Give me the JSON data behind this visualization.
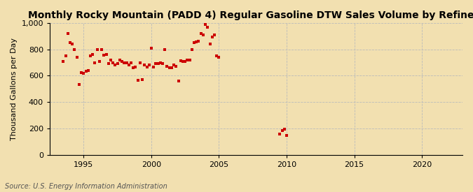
{
  "title": "Monthly Rocky Mountain (PADD 4) Regular Gasoline DTW Sales Volume by Refiners",
  "ylabel": "Thousand Gallons per Day",
  "source": "Source: U.S. Energy Information Administration",
  "background_color": "#f2e0b0",
  "plot_background_color": "#f2e0b0",
  "marker_color": "#cc0000",
  "marker": "s",
  "marker_size": 2.8,
  "xlim": [
    1992.5,
    2023.0
  ],
  "ylim": [
    0,
    1000
  ],
  "yticks": [
    0,
    200,
    400,
    600,
    800,
    1000
  ],
  "xticks": [
    1995,
    2000,
    2005,
    2010,
    2015,
    2020
  ],
  "grid_color": "#bbbbbb",
  "title_fontsize": 10,
  "axis_fontsize": 8,
  "source_fontsize": 7,
  "data_x": [
    1993.5,
    1993.67,
    1993.83,
    1994.0,
    1994.17,
    1994.33,
    1994.5,
    1994.67,
    1994.83,
    1995.0,
    1995.17,
    1995.33,
    1995.5,
    1995.67,
    1995.83,
    1996.0,
    1996.17,
    1996.33,
    1996.5,
    1996.67,
    1996.83,
    1997.0,
    1997.17,
    1997.33,
    1997.5,
    1997.67,
    1997.83,
    1998.0,
    1998.17,
    1998.33,
    1998.5,
    1998.67,
    1998.83,
    1999.0,
    1999.17,
    1999.33,
    1999.5,
    1999.67,
    1999.83,
    2000.0,
    2000.17,
    2000.33,
    2000.5,
    2000.67,
    2000.83,
    2001.0,
    2001.17,
    2001.33,
    2001.5,
    2001.67,
    2001.83,
    2002.0,
    2002.17,
    2002.33,
    2002.5,
    2002.67,
    2002.83,
    2003.0,
    2003.17,
    2003.33,
    2003.5,
    2003.67,
    2003.83,
    2004.0,
    2004.17,
    2004.33,
    2004.5,
    2004.67,
    2004.83,
    2005.0,
    2009.5,
    2009.67,
    2009.83,
    2010.0
  ],
  "data_y": [
    710,
    750,
    920,
    850,
    840,
    800,
    740,
    535,
    625,
    620,
    635,
    640,
    750,
    760,
    700,
    800,
    710,
    800,
    755,
    760,
    695,
    720,
    700,
    680,
    695,
    720,
    710,
    700,
    700,
    680,
    700,
    660,
    665,
    565,
    700,
    570,
    680,
    665,
    680,
    810,
    665,
    690,
    695,
    700,
    695,
    800,
    670,
    660,
    660,
    680,
    670,
    560,
    715,
    710,
    710,
    720,
    720,
    800,
    850,
    855,
    860,
    920,
    910,
    990,
    970,
    840,
    895,
    910,
    750,
    740,
    160,
    185,
    195,
    145
  ]
}
